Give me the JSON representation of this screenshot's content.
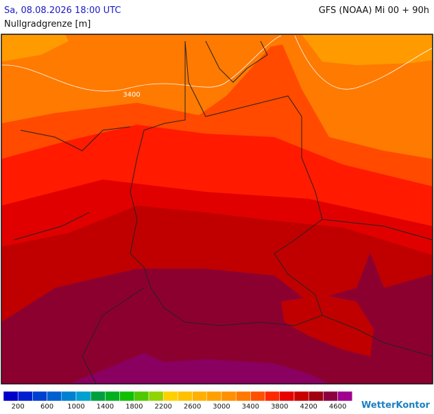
{
  "header": {
    "title": "Sa, 08.08.2026 18:00 UTC",
    "model": "GFS (NOAA) Mi 00 + 90h",
    "parameter": "Nullgradgrenze [m]"
  },
  "map": {
    "contour_labels": [
      "3400"
    ]
  },
  "legend": {
    "colors": [
      "#0000c8",
      "#0020d0",
      "#0040d0",
      "#0060d0",
      "#0080d0",
      "#00a0d0",
      "#00a040",
      "#00b020",
      "#10c000",
      "#50c800",
      "#90d400",
      "#ffd000",
      "#ffc000",
      "#ffb000",
      "#ffa000",
      "#ff9000",
      "#ff7800",
      "#ff5000",
      "#ff2800",
      "#e80000",
      "#c80000",
      "#a00010",
      "#8c0040",
      "#a00090"
    ],
    "ticks": [
      200,
      600,
      1000,
      1400,
      1800,
      2200,
      2600,
      3000,
      3400,
      3800,
      4200,
      4600
    ]
  },
  "logo": "WetterKontor"
}
